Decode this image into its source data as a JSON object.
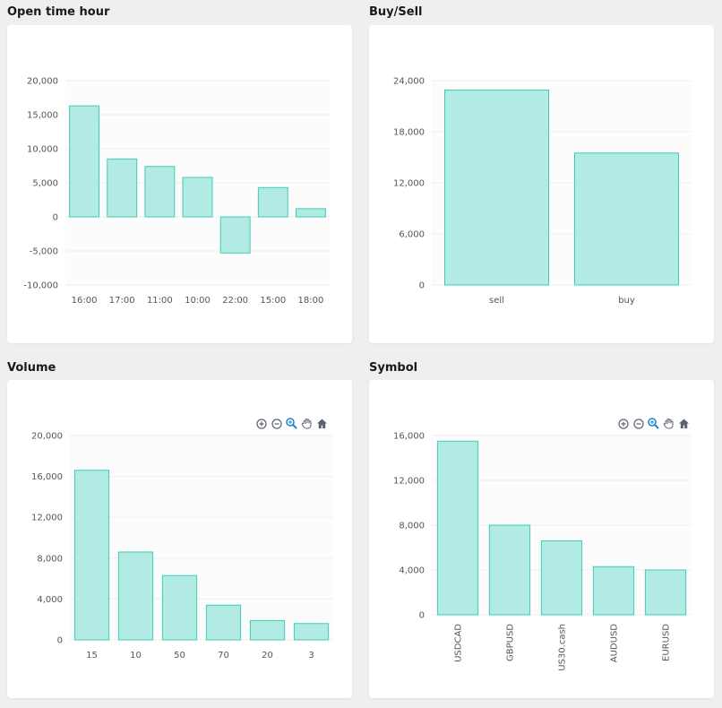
{
  "panels": [
    {
      "title": "Open time hour"
    },
    {
      "title": "Buy/Sell"
    },
    {
      "title": "Volume"
    },
    {
      "title": "Symbol"
    }
  ],
  "toolbar_icons": [
    "zoom-in-icon",
    "zoom-out-icon",
    "selection-zoom-icon",
    "pan-hand-icon",
    "home-reset-icon"
  ],
  "colors": {
    "bar_fill": "#b2ebe3",
    "bar_stroke": "#3ecdb8",
    "grid": "#eeeeee",
    "plot_bg": "#fcfcfc",
    "axis_text": "#555555",
    "icon": "#5a6270",
    "icon_active": "#1e88c8"
  },
  "chart_data": [
    {
      "type": "bar",
      "categories": [
        "16:00",
        "17:00",
        "11:00",
        "10:00",
        "22:00",
        "15:00",
        "18:00"
      ],
      "values": [
        16300,
        8500,
        7400,
        5800,
        -5300,
        4300,
        1200
      ],
      "ylim": [
        -10000,
        20000
      ],
      "yticks": [
        20000,
        15000,
        10000,
        5000,
        0,
        -5000,
        -10000
      ],
      "ytick_labels": [
        "20,000",
        "15,000",
        "10,000",
        "5,000",
        "0",
        "-5,000",
        "-10,000"
      ],
      "grid": true,
      "legend": "none"
    },
    {
      "type": "bar",
      "categories": [
        "sell",
        "buy"
      ],
      "values": [
        22900,
        15500
      ],
      "ylim": [
        0,
        24000
      ],
      "yticks": [
        24000,
        18000,
        12000,
        6000,
        0
      ],
      "ytick_labels": [
        "24,000",
        "18,000",
        "12,000",
        "6,000",
        "0"
      ],
      "grid": true,
      "legend": "none"
    },
    {
      "type": "bar",
      "categories": [
        "15",
        "10",
        "50",
        "70",
        "20",
        "3"
      ],
      "values": [
        16600,
        8600,
        6300,
        3400,
        1900,
        1600
      ],
      "ylim": [
        0,
        20000
      ],
      "yticks": [
        20000,
        16000,
        12000,
        8000,
        4000,
        0
      ],
      "ytick_labels": [
        "20,000",
        "16,000",
        "12,000",
        "8,000",
        "4,000",
        "0"
      ],
      "grid": true,
      "legend": "none"
    },
    {
      "type": "bar",
      "categories": [
        "USDCAD",
        "GBPUSD",
        "US30.cash",
        "AUDUSD",
        "EURUSD"
      ],
      "values": [
        15500,
        8000,
        6600,
        4300,
        4000
      ],
      "ylim": [
        0,
        16000
      ],
      "yticks": [
        16000,
        12000,
        8000,
        4000,
        0
      ],
      "ytick_labels": [
        "16,000",
        "12,000",
        "8,000",
        "4,000",
        "0"
      ],
      "grid": true,
      "legend": "none"
    }
  ]
}
